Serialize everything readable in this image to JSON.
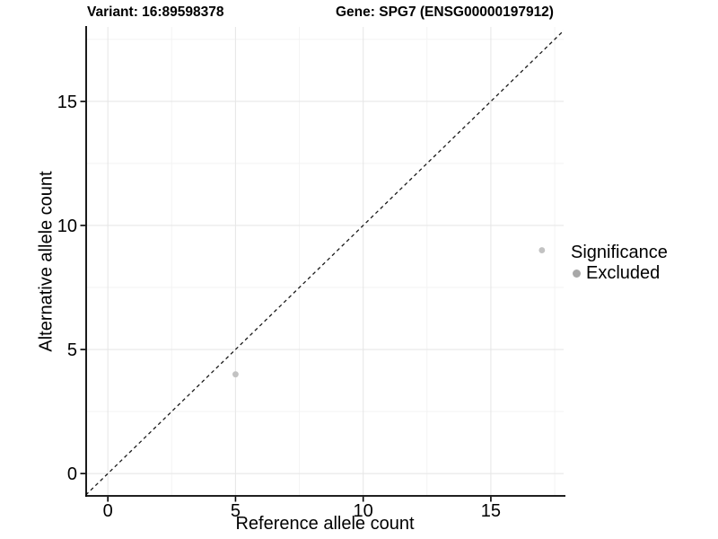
{
  "titles": {
    "variant": "Variant: 16:89598378",
    "gene": "Gene: SPG7 (ENSG00000197912)"
  },
  "axes": {
    "x_label": "Reference allele count",
    "y_label": "Alternative allele count"
  },
  "legend": {
    "title": "Significance",
    "items": [
      {
        "label": "Excluded",
        "color": "#a8a8a8"
      }
    ]
  },
  "chart_data": {
    "type": "scatter",
    "title": "Variant: 16:89598378 | Gene: SPG7 (ENSG00000197912)",
    "xlabel": "Reference allele count",
    "ylabel": "Alternative allele count",
    "xlim": [
      -0.85,
      17.85
    ],
    "ylim": [
      -0.9,
      18.0
    ],
    "x_ticks": [
      0,
      5,
      10,
      15
    ],
    "y_ticks": [
      0,
      5,
      10,
      15
    ],
    "x_minor_ticks": [
      2.5,
      7.5,
      12.5,
      17.5
    ],
    "y_minor_ticks": [
      2.5,
      7.5,
      12.5,
      17.5
    ],
    "grid": "major and minor, light gray",
    "legend_position": "right",
    "series": [
      {
        "name": "Excluded",
        "color": "#c2c2c2",
        "marker_size": 3.4,
        "points": [
          {
            "x": 5,
            "y": 4
          },
          {
            "x": 17,
            "y": 9
          }
        ]
      }
    ],
    "reference_line": {
      "kind": "identity y=x",
      "dashed": true,
      "color": "#1a1a1a"
    }
  },
  "style": {
    "background": "#ffffff",
    "grid_major": "#e7e7e7",
    "grid_minor": "#f3f3f3",
    "axis_line": "#000000",
    "tick_color": "#000000",
    "text_color": "#000000",
    "tick_font_px": 20
  }
}
